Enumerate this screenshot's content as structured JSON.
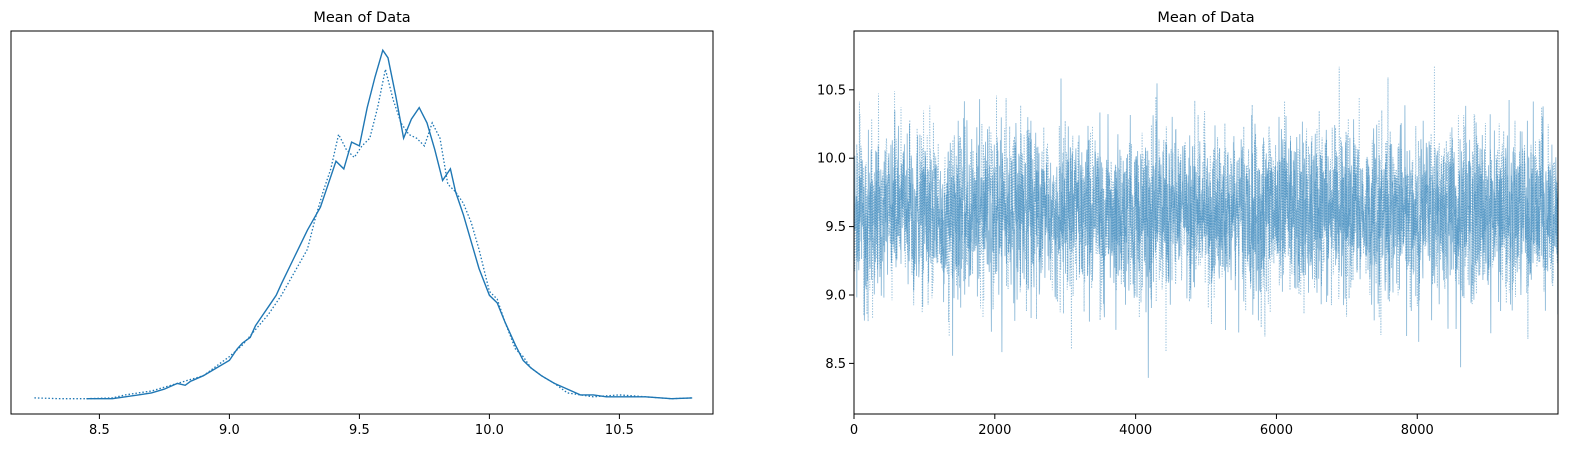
{
  "chart_data": [
    {
      "type": "line",
      "title": "Mean of Data",
      "xlabel": "",
      "ylabel": "",
      "xlim": [
        8.16,
        10.86
      ],
      "ylim": [
        0.0,
        1.0
      ],
      "x_ticks": [
        8.5,
        9.0,
        9.5,
        10.0,
        10.5
      ],
      "x_tick_labels": [
        "8.5",
        "9.0",
        "9.5",
        "10.0",
        "10.5"
      ],
      "y_ticks": [],
      "color": "#1f77b4",
      "series": [
        {
          "style": "solid",
          "x": [
            8.45,
            8.55,
            8.6,
            8.65,
            8.7,
            8.75,
            8.8,
            8.83,
            8.85,
            8.9,
            8.95,
            9.0,
            9.03,
            9.05,
            9.08,
            9.1,
            9.13,
            9.15,
            9.18,
            9.2,
            9.25,
            9.3,
            9.35,
            9.38,
            9.41,
            9.44,
            9.47,
            9.5,
            9.53,
            9.56,
            9.59,
            9.61,
            9.64,
            9.67,
            9.7,
            9.73,
            9.76,
            9.79,
            9.82,
            9.85,
            9.87,
            9.9,
            9.93,
            9.96,
            10.0,
            10.03,
            10.06,
            10.1,
            10.13,
            10.16,
            10.2,
            10.25,
            10.3,
            10.35,
            10.4,
            10.45,
            10.5,
            10.6,
            10.7,
            10.78
          ],
          "y": [
            0.04,
            0.04,
            0.045,
            0.05,
            0.055,
            0.065,
            0.08,
            0.075,
            0.085,
            0.1,
            0.12,
            0.14,
            0.17,
            0.185,
            0.2,
            0.23,
            0.26,
            0.28,
            0.31,
            0.34,
            0.41,
            0.48,
            0.54,
            0.6,
            0.66,
            0.64,
            0.71,
            0.7,
            0.8,
            0.88,
            0.95,
            0.93,
            0.83,
            0.72,
            0.77,
            0.8,
            0.76,
            0.69,
            0.61,
            0.64,
            0.58,
            0.52,
            0.45,
            0.38,
            0.31,
            0.29,
            0.24,
            0.18,
            0.14,
            0.12,
            0.1,
            0.08,
            0.065,
            0.05,
            0.05,
            0.045,
            0.045,
            0.045,
            0.04,
            0.042
          ]
        },
        {
          "style": "dotted",
          "x": [
            8.25,
            8.35,
            8.45,
            8.55,
            8.6,
            8.65,
            8.7,
            8.75,
            8.8,
            8.85,
            8.9,
            8.95,
            9.0,
            9.05,
            9.1,
            9.15,
            9.2,
            9.25,
            9.3,
            9.33,
            9.36,
            9.39,
            9.42,
            9.45,
            9.48,
            9.51,
            9.54,
            9.57,
            9.6,
            9.63,
            9.66,
            9.69,
            9.72,
            9.75,
            9.78,
            9.81,
            9.84,
            9.87,
            9.9,
            9.93,
            9.96,
            10.0,
            10.03,
            10.06,
            10.1,
            10.13,
            10.16,
            10.2,
            10.25,
            10.3,
            10.35,
            10.4,
            10.5,
            10.6,
            10.7,
            10.78
          ],
          "y": [
            0.042,
            0.04,
            0.04,
            0.042,
            0.05,
            0.055,
            0.06,
            0.07,
            0.08,
            0.09,
            0.1,
            0.125,
            0.15,
            0.18,
            0.22,
            0.26,
            0.31,
            0.37,
            0.43,
            0.51,
            0.58,
            0.64,
            0.73,
            0.69,
            0.67,
            0.7,
            0.72,
            0.8,
            0.9,
            0.82,
            0.76,
            0.73,
            0.72,
            0.7,
            0.76,
            0.72,
            0.6,
            0.58,
            0.55,
            0.5,
            0.43,
            0.32,
            0.3,
            0.24,
            0.17,
            0.15,
            0.12,
            0.1,
            0.08,
            0.055,
            0.05,
            0.045,
            0.05,
            0.045,
            0.04,
            0.042
          ]
        }
      ]
    },
    {
      "type": "line",
      "title": "Mean of Data",
      "xlabel": "",
      "ylabel": "",
      "xlim": [
        0,
        9999
      ],
      "ylim": [
        8.13,
        10.93
      ],
      "x_ticks": [
        0,
        2000,
        4000,
        6000,
        8000
      ],
      "x_tick_labels": [
        "0",
        "2000",
        "4000",
        "6000",
        "8000"
      ],
      "y_ticks": [
        8.5,
        9.0,
        9.5,
        10.0,
        10.5
      ],
      "y_tick_labels": [
        "8.5",
        "9.0",
        "9.5",
        "10.0",
        "10.5"
      ],
      "color": "#1f77b4",
      "n_draws": 10000,
      "trace_summary": {
        "center": 9.6,
        "typical_band": [
          9.0,
          10.2
        ],
        "min": 8.26,
        "max": 10.79
      },
      "series": [
        {
          "style": "solid",
          "alpha": 0.5
        },
        {
          "style": "dotted",
          "alpha": 0.5
        }
      ]
    }
  ]
}
